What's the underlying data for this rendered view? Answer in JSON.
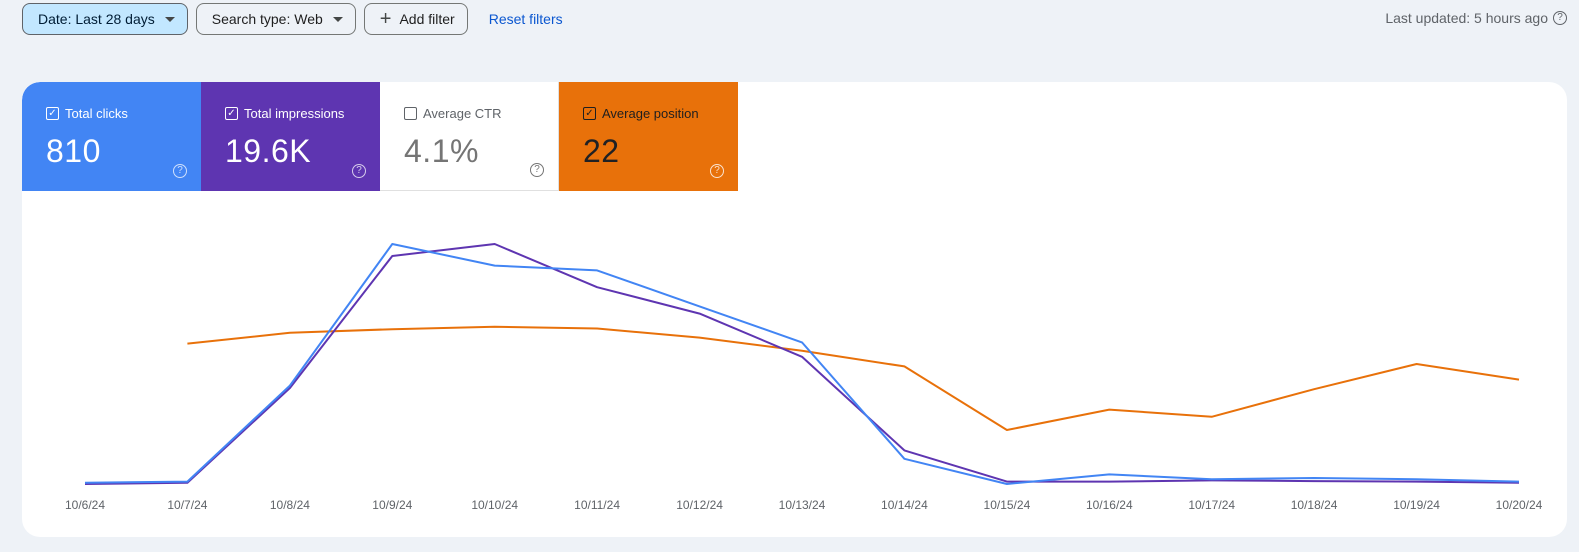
{
  "filters": {
    "date_label": "Date: Last 28 days",
    "search_type_label": "Search type: Web",
    "add_filter_label": "Add filter",
    "reset_label": "Reset filters"
  },
  "status": {
    "last_updated": "Last updated: 5 hours ago"
  },
  "metrics": [
    {
      "label": "Total clicks",
      "value": "810",
      "checked": true,
      "color": "#4285f4"
    },
    {
      "label": "Total impressions",
      "value": "19.6K",
      "checked": true,
      "color": "#5e35b1"
    },
    {
      "label": "Average CTR",
      "value": "4.1%",
      "checked": false,
      "color": "#ffffff"
    },
    {
      "label": "Average position",
      "value": "22",
      "checked": true,
      "color": "#e8710a"
    }
  ],
  "icons": {
    "checkbox_checked": "☑",
    "help": "?",
    "dropdown": "caret-down",
    "add": "+"
  },
  "chart_data": {
    "type": "line",
    "x": [
      "10/6/24",
      "10/7/24",
      "10/8/24",
      "10/9/24",
      "10/10/24",
      "10/11/24",
      "10/12/24",
      "10/13/24",
      "10/14/24",
      "10/15/24",
      "10/16/24",
      "10/17/24",
      "10/18/24",
      "10/19/24",
      "10/20/24"
    ],
    "grid": false,
    "axes_visible": false,
    "series": [
      {
        "name": "Total clicks",
        "color": "#4285f4",
        "relative_values": [
          0.005,
          0.01,
          0.41,
          1.0,
          0.91,
          0.89,
          0.74,
          0.59,
          0.105,
          0.0,
          0.04,
          0.02,
          0.025,
          0.02,
          0.01
        ]
      },
      {
        "name": "Total impressions",
        "color": "#5e35b1",
        "relative_values": [
          0.0,
          0.005,
          0.4,
          0.95,
          1.0,
          0.82,
          0.71,
          0.53,
          0.14,
          0.01,
          0.01,
          0.015,
          0.012,
          0.01,
          0.005
        ]
      },
      {
        "name": "Average position",
        "color": "#e8710a",
        "relative_values": [
          null,
          0.585,
          0.63,
          0.645,
          0.655,
          0.648,
          0.61,
          0.555,
          0.49,
          0.225,
          0.31,
          0.28,
          0.395,
          0.5,
          0.435
        ]
      }
    ]
  }
}
